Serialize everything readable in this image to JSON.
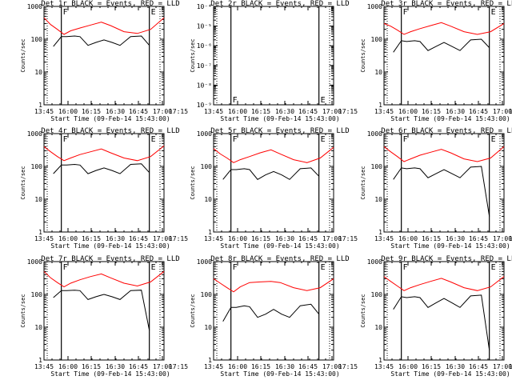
{
  "colors": {
    "events": "#000000",
    "lld": "#ff0000",
    "axis": "#000000",
    "background": "#ffffff"
  },
  "chart_data": [
    {
      "type": "line",
      "title": "Det 1r BLACK = Events, RED = LLD",
      "xlabel": "Start Time (09-Feb-14 15:43:00)",
      "ylabel": "Counts/sec",
      "y_scale": "log",
      "ylim": [
        1,
        1000
      ],
      "x_tick_labels": [
        "13:45",
        "16:00",
        "16:15",
        "16:30",
        "16:45",
        "17:00",
        "17:15"
      ],
      "y_tick_labels": [
        "1",
        "10",
        "100",
        "1000"
      ],
      "markers": [
        {
          "label": "F",
          "x": "15:58"
        },
        {
          "label": "E",
          "x": "17:04"
        }
      ],
      "series": [
        {
          "name": "Events",
          "x": [
            "15:52",
            "15:58",
            "16:02",
            "16:08",
            "16:12",
            "16:18",
            "16:24",
            "16:30",
            "16:36",
            "16:42",
            "16:50",
            "16:58",
            "17:04"
          ],
          "values": [
            60,
            120,
            120,
            125,
            120,
            65,
            80,
            95,
            80,
            65,
            120,
            125,
            65
          ]
        },
        {
          "name": "LLD",
          "x": [
            "15:45",
            "15:50",
            "15:55",
            "16:00",
            "16:05",
            "16:12",
            "16:20",
            "16:28",
            "16:35",
            "16:45",
            "16:55",
            "17:05",
            "17:15"
          ],
          "values": [
            450,
            280,
            200,
            140,
            180,
            220,
            270,
            330,
            260,
            170,
            150,
            200,
            450
          ]
        }
      ]
    },
    {
      "type": "line",
      "title": "Det 2r BLACK = Events, RED = LLD",
      "xlabel": "Start Time (09-Feb-14 15:43:00)",
      "ylabel": "Counts/sec",
      "y_scale": "log",
      "ylim": [
        1e-09,
        0.0001
      ],
      "x_tick_labels": [
        "13:45",
        "16:00",
        "16:15",
        "16:30",
        "16:45",
        "17:00",
        "17:15"
      ],
      "y_tick_labels": [
        "10⁻⁹",
        "10⁻⁸",
        "10⁻⁷",
        "10⁻⁶",
        "10⁻⁵",
        "10⁻⁴"
      ],
      "markers": [
        {
          "label": "F",
          "x": "15:58"
        },
        {
          "label": "E",
          "x": "17:04"
        }
      ],
      "series": []
    },
    {
      "type": "line",
      "title": "Det 3r BLACK = Events, RED = LLD",
      "xlabel": "Start Time (09-Feb-14 15:43:00)",
      "ylabel": "Counts/sec",
      "y_scale": "log",
      "ylim": [
        1,
        1000
      ],
      "x_tick_labels": [
        "13:45",
        "16:00",
        "16:15",
        "16:30",
        "16:45",
        "17:00",
        "17:15"
      ],
      "y_tick_labels": [
        "1",
        "10",
        "100",
        "1000"
      ],
      "markers": [
        {
          "label": "F",
          "x": "15:58"
        },
        {
          "label": "E",
          "x": "17:04"
        }
      ],
      "series": [
        {
          "name": "Events",
          "x": [
            "15:52",
            "15:58",
            "16:02",
            "16:08",
            "16:12",
            "16:18",
            "16:24",
            "16:30",
            "16:36",
            "16:42",
            "16:50",
            "16:58",
            "17:04"
          ],
          "values": [
            40,
            90,
            85,
            90,
            85,
            45,
            60,
            80,
            60,
            45,
            95,
            100,
            55
          ]
        },
        {
          "name": "LLD",
          "x": [
            "15:45",
            "15:50",
            "15:55",
            "16:00",
            "16:05",
            "16:12",
            "16:20",
            "16:28",
            "16:35",
            "16:45",
            "16:55",
            "17:05",
            "17:15"
          ],
          "values": [
            300,
            250,
            190,
            140,
            170,
            210,
            260,
            320,
            250,
            170,
            140,
            170,
            300
          ]
        }
      ]
    },
    {
      "type": "line",
      "title": "Det 4r BLACK = Events, RED = LLD",
      "xlabel": "Start Time (09-Feb-14 15:43:00)",
      "ylabel": "Counts/sec",
      "y_scale": "log",
      "ylim": [
        1,
        1000
      ],
      "x_tick_labels": [
        "13:45",
        "16:00",
        "16:15",
        "16:30",
        "16:45",
        "17:00",
        "17:15"
      ],
      "y_tick_labels": [
        "1",
        "10",
        "100",
        "1000"
      ],
      "markers": [
        {
          "label": "F",
          "x": "15:58"
        },
        {
          "label": "E",
          "x": "17:04"
        }
      ],
      "series": [
        {
          "name": "Events",
          "x": [
            "15:52",
            "15:58",
            "16:02",
            "16:08",
            "16:12",
            "16:18",
            "16:24",
            "16:30",
            "16:36",
            "16:42",
            "16:50",
            "16:58",
            "17:04"
          ],
          "values": [
            60,
            110,
            110,
            115,
            110,
            60,
            75,
            90,
            75,
            60,
            115,
            120,
            65
          ]
        },
        {
          "name": "LLD",
          "x": [
            "15:45",
            "15:50",
            "15:55",
            "16:00",
            "16:05",
            "16:12",
            "16:20",
            "16:28",
            "16:35",
            "16:45",
            "16:55",
            "17:05",
            "17:15"
          ],
          "values": [
            400,
            280,
            200,
            150,
            180,
            230,
            280,
            340,
            260,
            180,
            150,
            200,
            420
          ]
        }
      ]
    },
    {
      "type": "line",
      "title": "Det 5r BLACK = Events, RED = LLD",
      "xlabel": "Start Time (09-Feb-14 15:43:00)",
      "ylabel": "Counts/sec",
      "y_scale": "log",
      "ylim": [
        1,
        1000
      ],
      "x_tick_labels": [
        "13:45",
        "16:00",
        "16:15",
        "16:30",
        "16:45",
        "17:00",
        "17:15"
      ],
      "y_tick_labels": [
        "1",
        "10",
        "100",
        "1000"
      ],
      "markers": [
        {
          "label": "F",
          "x": "15:58"
        },
        {
          "label": "E",
          "x": "17:04"
        }
      ],
      "series": [
        {
          "name": "Events",
          "x": [
            "15:52",
            "15:58",
            "16:02",
            "16:08",
            "16:12",
            "16:18",
            "16:24",
            "16:30",
            "16:36",
            "16:42",
            "16:50",
            "16:58",
            "17:04"
          ],
          "values": [
            40,
            80,
            80,
            85,
            80,
            40,
            55,
            70,
            55,
            40,
            85,
            90,
            50
          ]
        },
        {
          "name": "LLD",
          "x": [
            "15:45",
            "15:50",
            "15:55",
            "16:00",
            "16:05",
            "16:12",
            "16:20",
            "16:28",
            "16:35",
            "16:45",
            "16:55",
            "17:05",
            "17:15"
          ],
          "values": [
            350,
            240,
            180,
            130,
            160,
            200,
            260,
            320,
            240,
            160,
            130,
            180,
            380
          ]
        }
      ]
    },
    {
      "type": "line",
      "title": "Det 6r BLACK = Events, RED = LLD",
      "xlabel": "Start Time (09-Feb-14 15:43:00)",
      "ylabel": "Counts/sec",
      "y_scale": "log",
      "ylim": [
        1,
        1000
      ],
      "x_tick_labels": [
        "13:45",
        "16:00",
        "16:15",
        "16:30",
        "16:45",
        "17:00",
        "17:15"
      ],
      "y_tick_labels": [
        "1",
        "10",
        "100",
        "1000"
      ],
      "markers": [
        {
          "label": "F",
          "x": "15:58"
        },
        {
          "label": "E",
          "x": "17:04"
        }
      ],
      "series": [
        {
          "name": "Events",
          "x": [
            "15:52",
            "15:58",
            "16:02",
            "16:08",
            "16:12",
            "16:18",
            "16:24",
            "16:30",
            "16:36",
            "16:42",
            "16:50",
            "16:58",
            "17:04"
          ],
          "values": [
            40,
            90,
            85,
            90,
            85,
            45,
            60,
            80,
            60,
            45,
            95,
            100,
            3
          ]
        },
        {
          "name": "LLD",
          "x": [
            "15:45",
            "15:50",
            "15:55",
            "16:00",
            "16:05",
            "16:12",
            "16:20",
            "16:28",
            "16:35",
            "16:45",
            "16:55",
            "17:05",
            "17:15"
          ],
          "values": [
            400,
            280,
            200,
            140,
            170,
            220,
            270,
            330,
            260,
            170,
            140,
            180,
            400
          ]
        }
      ]
    },
    {
      "type": "line",
      "title": "Det 7r BLACK = Events, RED = LLD",
      "xlabel": "Start Time (09-Feb-14 15:43:00)",
      "ylabel": "Counts/sec",
      "y_scale": "log",
      "ylim": [
        1,
        1000
      ],
      "x_tick_labels": [
        "13:45",
        "16:00",
        "16:15",
        "16:30",
        "16:45",
        "17:00",
        "17:15"
      ],
      "y_tick_labels": [
        "1",
        "10",
        "100",
        "1000"
      ],
      "markers": [
        {
          "label": "F",
          "x": "15:58"
        },
        {
          "label": "E",
          "x": "17:04"
        }
      ],
      "series": [
        {
          "name": "Events",
          "x": [
            "15:52",
            "15:58",
            "16:02",
            "16:08",
            "16:12",
            "16:18",
            "16:24",
            "16:30",
            "16:36",
            "16:42",
            "16:50",
            "16:58",
            "17:04"
          ],
          "values": [
            80,
            130,
            130,
            135,
            130,
            70,
            85,
            100,
            85,
            70,
            130,
            135,
            8
          ]
        },
        {
          "name": "LLD",
          "x": [
            "15:45",
            "15:50",
            "15:55",
            "16:00",
            "16:05",
            "16:12",
            "16:20",
            "16:28",
            "16:35",
            "16:45",
            "16:55",
            "17:05",
            "17:15"
          ],
          "values": [
            500,
            320,
            230,
            170,
            220,
            280,
            350,
            420,
            320,
            220,
            180,
            240,
            500
          ]
        }
      ]
    },
    {
      "type": "line",
      "title": "Det 8r BLACK = Events, RED = LLD",
      "xlabel": "Start Time (09-Feb-14 15:43:00)",
      "ylabel": "Counts/sec",
      "y_scale": "log",
      "ylim": [
        1,
        1000
      ],
      "x_tick_labels": [
        "13:45",
        "16:00",
        "16:15",
        "16:30",
        "16:45",
        "17:00",
        "17:15"
      ],
      "y_tick_labels": [
        "1",
        "10",
        "100",
        "1000"
      ],
      "markers": [
        {
          "label": "F",
          "x": "15:58"
        },
        {
          "label": "E",
          "x": "17:04"
        }
      ],
      "series": [
        {
          "name": "Events",
          "x": [
            "15:52",
            "15:58",
            "16:02",
            "16:08",
            "16:12",
            "16:18",
            "16:24",
            "16:30",
            "16:36",
            "16:42",
            "16:50",
            "16:58",
            "17:04"
          ],
          "values": [
            15,
            40,
            40,
            45,
            42,
            20,
            25,
            35,
            25,
            20,
            45,
            50,
            25
          ]
        },
        {
          "name": "LLD",
          "x": [
            "15:45",
            "15:50",
            "15:55",
            "16:00",
            "16:05",
            "16:12",
            "16:20",
            "16:28",
            "16:35",
            "16:45",
            "16:55",
            "17:05",
            "17:15"
          ],
          "values": [
            300,
            220,
            160,
            120,
            170,
            230,
            240,
            250,
            230,
            160,
            130,
            160,
            300
          ]
        }
      ]
    },
    {
      "type": "line",
      "title": "Det 9r BLACK = Events, RED = LLD",
      "xlabel": "Start Time (09-Feb-14 15:43:00)",
      "ylabel": "Counts/sec",
      "y_scale": "log",
      "ylim": [
        1,
        1000
      ],
      "x_tick_labels": [
        "13:45",
        "16:00",
        "16:15",
        "16:30",
        "16:45",
        "17:00",
        "17:15"
      ],
      "y_tick_labels": [
        "1",
        "10",
        "100",
        "1000"
      ],
      "markers": [
        {
          "label": "F",
          "x": "15:58"
        },
        {
          "label": "E",
          "x": "17:04"
        }
      ],
      "series": [
        {
          "name": "Events",
          "x": [
            "15:52",
            "15:58",
            "16:02",
            "16:08",
            "16:12",
            "16:18",
            "16:24",
            "16:30",
            "16:36",
            "16:42",
            "16:50",
            "16:58",
            "17:04"
          ],
          "values": [
            35,
            85,
            80,
            85,
            80,
            40,
            55,
            75,
            55,
            40,
            90,
            95,
            2
          ]
        },
        {
          "name": "LLD",
          "x": [
            "15:45",
            "15:50",
            "15:55",
            "16:00",
            "16:05",
            "16:12",
            "16:20",
            "16:28",
            "16:35",
            "16:45",
            "16:55",
            "17:05",
            "17:15"
          ],
          "values": [
            350,
            250,
            180,
            130,
            160,
            200,
            250,
            310,
            240,
            160,
            130,
            170,
            350
          ]
        }
      ]
    }
  ]
}
